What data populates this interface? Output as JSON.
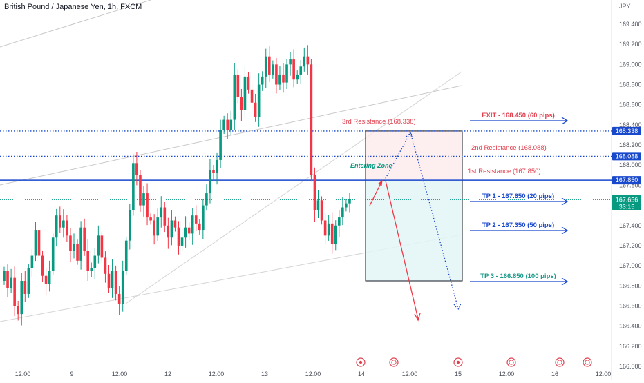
{
  "header": {
    "symbol_line": "British Pound / Japanese Yen, 1h, FXCM",
    "currency": "JPY"
  },
  "colors": {
    "bull": "#089981",
    "bear": "#f23645",
    "blue": "#1848cc",
    "red_text": "#e0404e",
    "teal_text": "#1a9a8a"
  },
  "chart_data": {
    "type": "candlestick",
    "title": "British Pound / Japanese Yen, 1h, FXCM",
    "ylabel": "JPY",
    "ylim": [
      166.0,
      169.55
    ],
    "y_ticks": [
      166.0,
      166.2,
      166.4,
      166.6,
      166.8,
      167.0,
      167.2,
      167.4,
      167.6,
      167.8,
      168.0,
      168.2,
      168.4,
      168.6,
      168.8,
      169.0,
      169.2,
      169.4
    ],
    "y_tick_labels": [
      "166.000",
      "166.200",
      "166.400",
      "166.600",
      "166.800",
      "167.000",
      "167.200",
      "167.400",
      "167.600",
      "167.800",
      "168.000",
      "168.200",
      "168.400",
      "168.600",
      "168.800",
      "169.000",
      "169.200",
      "169.400"
    ],
    "x_ticks": [
      "12:00",
      "9",
      "12:00",
      "12",
      "12:00",
      "13",
      "12:00",
      "14",
      "12:00",
      "15",
      "12:00",
      "16",
      "12:00"
    ],
    "closes": [
      166.95,
      166.78,
      166.88,
      166.6,
      166.52,
      166.85,
      166.72,
      166.98,
      167.1,
      167.35,
      167.1,
      166.9,
      166.82,
      166.95,
      167.28,
      167.5,
      167.38,
      167.45,
      167.3,
      167.15,
      167.22,
      167.05,
      167.38,
      167.15,
      166.95,
      166.98,
      167.1,
      167.3,
      167.08,
      166.92,
      166.78,
      166.95,
      166.72,
      166.62,
      166.95,
      167.25,
      167.55,
      168.02,
      167.9,
      167.6,
      167.72,
      167.48,
      167.45,
      167.3,
      167.48,
      167.58,
      167.4,
      167.28,
      167.45,
      167.38,
      167.2,
      167.28,
      167.38,
      167.32,
      167.5,
      167.42,
      167.35,
      167.6,
      167.72,
      167.95,
      167.92,
      168.05,
      168.35,
      168.45,
      168.35,
      168.45,
      168.9,
      168.68,
      168.55,
      168.88,
      168.75,
      168.62,
      168.48,
      168.8,
      168.88,
      169.08,
      168.9,
      169.0,
      168.8,
      168.9,
      168.82,
      169.0,
      169.05,
      168.85,
      168.9,
      168.98,
      169.08,
      169.0,
      167.9,
      167.55,
      167.65,
      167.45,
      167.3,
      167.42,
      167.22,
      167.4,
      167.48,
      167.58,
      167.62,
      167.66
    ],
    "current_price": 167.656,
    "current_price_label": "167.656",
    "countdown": "33:15",
    "levels": [
      {
        "name": "3rd Resistance (168.338)",
        "value": 168.338,
        "label": "168.338"
      },
      {
        "name": "2nd Resistance (168.088)",
        "value": 168.088,
        "label": "168.088"
      },
      {
        "name": "1st Resistance (167.850)",
        "value": 167.85,
        "label": "167.850"
      }
    ],
    "annotations": {
      "exit": "EXIT - 168.450 (60 pips)",
      "tp1": "TP 1 - 167.650 (20 pips)",
      "tp2": "TP 2 - 167.350 (50 pips)",
      "tp3": "TP 3 - 166.850 (100 pips)",
      "entering_zone": "Entering Zone",
      "r3": "3rd Resistance (168.338)",
      "r2": "2nd Resistance (168.088)",
      "r1": "1st Resistance (167.850)"
    },
    "position_box": {
      "top": 168.338,
      "entry": 167.85,
      "bottom": 166.85
    }
  }
}
